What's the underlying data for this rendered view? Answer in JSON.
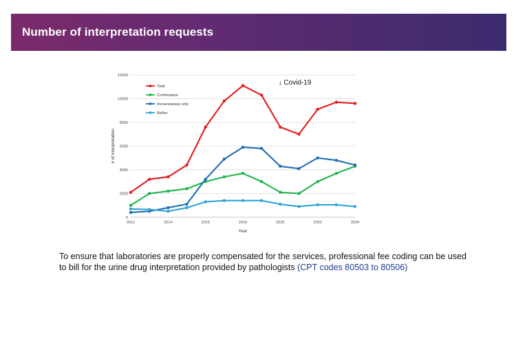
{
  "slide": {
    "title": "Number of interpretation requests",
    "caption_text": "To ensure that laboratories are properly compensated for the services, professional fee coding can be used to bill for the urine drug interpretation provided by pathologists",
    "caption_link": "(CPT codes 80503 to 80506)"
  },
  "colors": {
    "title_bar_start": "#7b2a6b",
    "title_bar_end": "#3a2b6e",
    "total": "#e3191b",
    "confirmation": "#1db34a",
    "immunoassay": "#1f6db3",
    "reflex": "#2ea3d6"
  },
  "chart_data": {
    "type": "line",
    "title": "",
    "xlabel": "Year",
    "ylabel": "# of interpretation",
    "x": [
      2012,
      2013,
      2014,
      2015,
      2016,
      2017,
      2018,
      2019,
      2020,
      2021,
      2022,
      2023,
      2024
    ],
    "x_ticks": [
      "2012",
      "2014",
      "2016",
      "2018",
      "2020",
      "2022",
      "2024"
    ],
    "x_tick_values": [
      2012,
      2014,
      2016,
      2018,
      2020,
      2022,
      2024
    ],
    "y_ticks": [
      "0",
      "2000",
      "4000",
      "6000",
      "8000",
      "10000",
      "12000"
    ],
    "y_tick_values": [
      0,
      2000,
      4000,
      6000,
      8000,
      10000,
      12000
    ],
    "xlim": [
      2012,
      2024
    ],
    "ylim": [
      0,
      12000
    ],
    "grid": "horizontal",
    "legend_position": "top-left",
    "annotation": "↓ Covid-19",
    "annotation_x": 2019.9,
    "annotation_y": 11200,
    "series": [
      {
        "name": "Total",
        "color": "#e3191b",
        "values": [
          2100,
          3200,
          3400,
          4400,
          7600,
          9800,
          11100,
          10300,
          7600,
          7000,
          9100,
          9700,
          9600
        ]
      },
      {
        "name": "Confirmation",
        "color": "#1db34a",
        "values": [
          1000,
          2000,
          2200,
          2400,
          3000,
          3400,
          3700,
          3000,
          2100,
          2000,
          3000,
          3700,
          4300
        ]
      },
      {
        "name": "Immunoassay only",
        "color": "#1f6db3",
        "values": [
          400,
          500,
          800,
          1100,
          3200,
          4900,
          5900,
          5800,
          4300,
          4100,
          5000,
          4800,
          4400
        ]
      },
      {
        "name": "Reflex",
        "color": "#2ea3d6",
        "values": [
          700,
          650,
          500,
          800,
          1300,
          1400,
          1400,
          1400,
          1100,
          900,
          1050,
          1050,
          900
        ]
      }
    ]
  }
}
